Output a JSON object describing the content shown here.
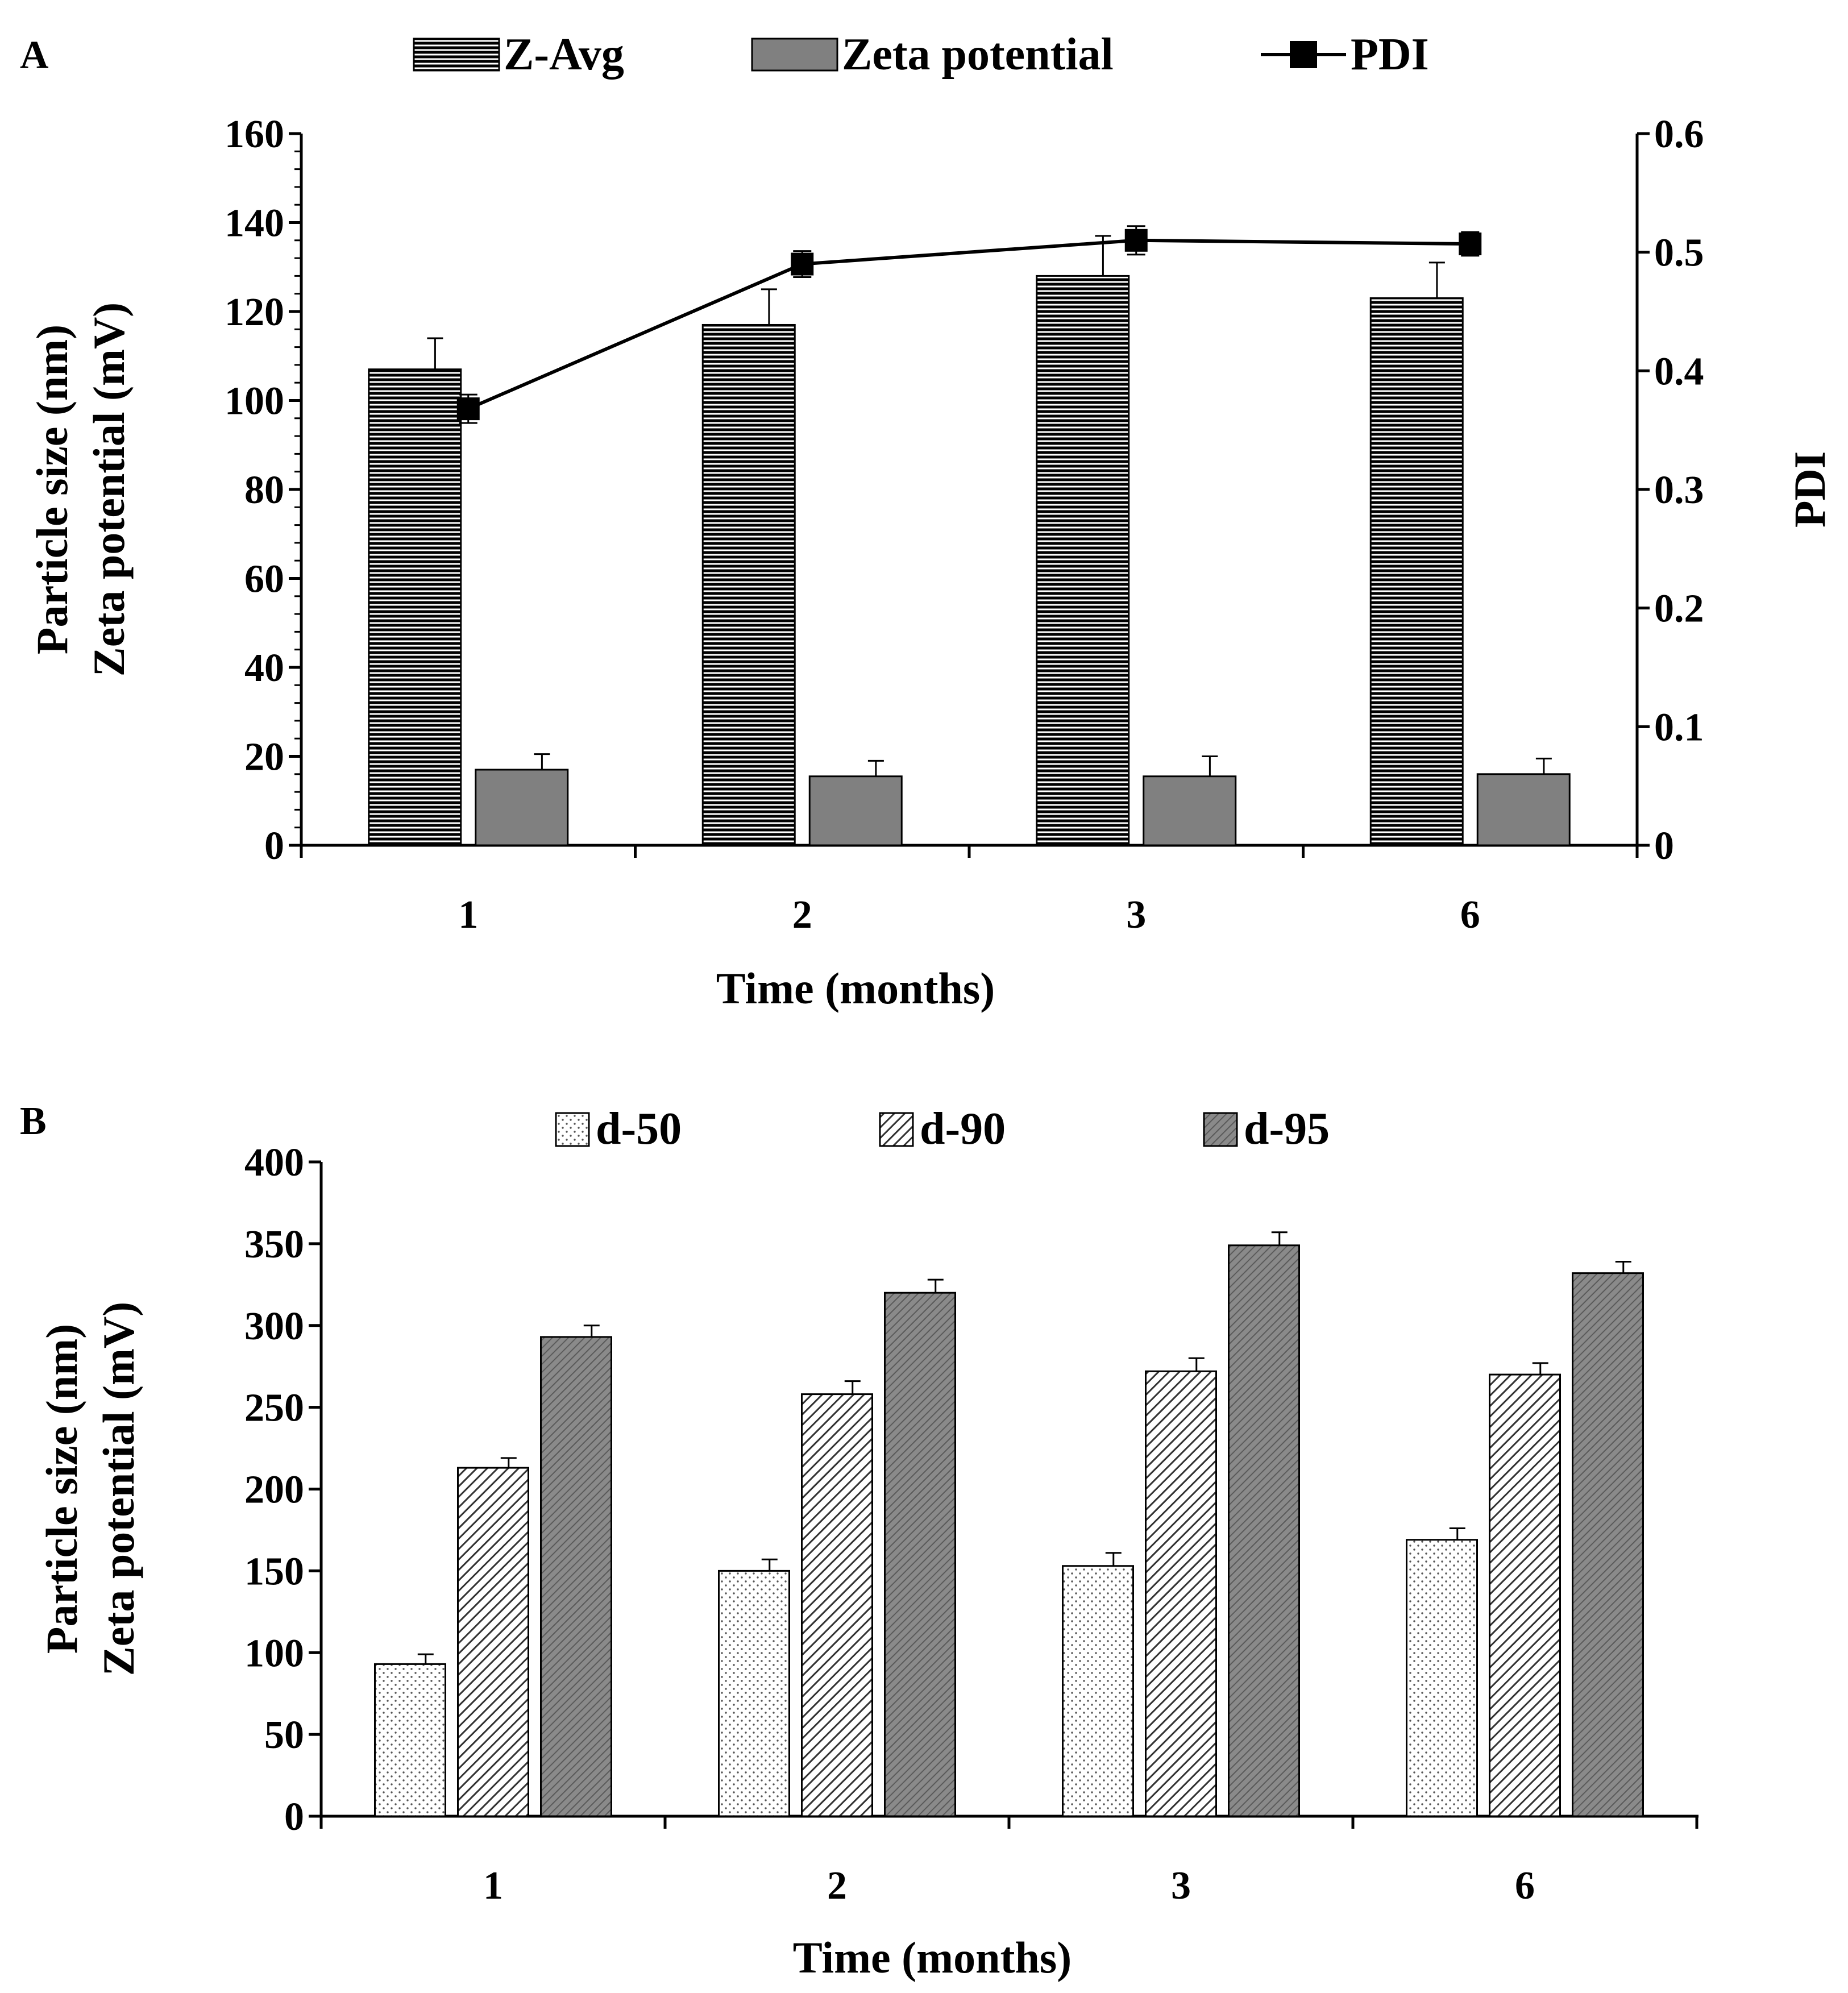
{
  "chart_data": [
    {
      "panel": "A",
      "type": "bar",
      "categories": [
        "1",
        "2",
        "3",
        "6"
      ],
      "xlabel": "Time (months)",
      "ylabel": [
        "Particle size (nm)",
        "Zeta potential (mV)"
      ],
      "ylim": [
        0,
        160
      ],
      "yticks": [
        "0",
        "20",
        "40",
        "60",
        "80",
        "100",
        "120",
        "140",
        "160"
      ],
      "y2label": "PDI",
      "y2lim": [
        0,
        0.6
      ],
      "y2ticks": [
        "0",
        "0.1",
        "0.2",
        "0.3",
        "0.4",
        "0.5",
        "0.6"
      ],
      "legend_position": "top",
      "series": [
        {
          "name": "Z-Avg",
          "kind": "bar",
          "pattern": "horizontal-lines",
          "values": [
            107,
            117,
            128,
            123
          ],
          "errors": [
            7,
            8,
            9,
            8
          ]
        },
        {
          "name": "Zeta potential",
          "kind": "bar",
          "pattern": "solid-gray",
          "values": [
            17,
            15.5,
            15.5,
            16
          ],
          "errors": [
            3.5,
            3.5,
            4.5,
            3.5
          ]
        },
        {
          "name": "PDI",
          "kind": "line",
          "axis": "right",
          "values": [
            0.368,
            0.49,
            0.51,
            0.507
          ],
          "errors": [
            0.012,
            0.011,
            0.012,
            0.01
          ]
        }
      ]
    },
    {
      "panel": "B",
      "type": "bar",
      "categories": [
        "1",
        "2",
        "3",
        "6"
      ],
      "xlabel": "Time (months)",
      "ylabel": [
        "Particle size (nm)",
        "Zeta potential (mV)"
      ],
      "ylim": [
        0,
        400
      ],
      "yticks": [
        "0",
        "50",
        "100",
        "150",
        "200",
        "250",
        "300",
        "350",
        "400"
      ],
      "legend_position": "top",
      "series": [
        {
          "name": "d-50",
          "pattern": "dots",
          "values": [
            93,
            150,
            153,
            169
          ],
          "errors": [
            6,
            7,
            8,
            7
          ]
        },
        {
          "name": "d-90",
          "pattern": "diagonal",
          "values": [
            213,
            258,
            272,
            270
          ],
          "errors": [
            6,
            8,
            8,
            7
          ]
        },
        {
          "name": "d-95",
          "pattern": "dark-diagonal",
          "values": [
            293,
            320,
            349,
            332
          ],
          "errors": [
            7,
            8,
            8,
            7
          ]
        }
      ]
    }
  ]
}
